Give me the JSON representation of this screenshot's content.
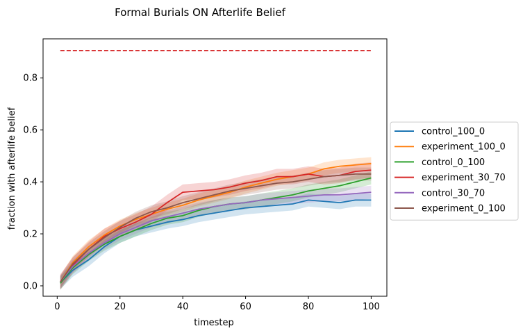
{
  "chart_data": {
    "type": "line",
    "title": "Formal Burials ON Afterlife Belief",
    "xlabel": "timestep",
    "ylabel": "fraction with afterlife belief",
    "xlim": [
      -4.5,
      105
    ],
    "ylim": [
      -0.04,
      0.95
    ],
    "xticks": [
      0,
      20,
      40,
      60,
      80,
      100
    ],
    "yticks": [
      0.0,
      0.2,
      0.4,
      0.6,
      0.8
    ],
    "grid": false,
    "legend_position": "outside-right",
    "reference_line": {
      "y": 0.905,
      "x": [
        1,
        100
      ],
      "style": "dashed",
      "color": "#d62728"
    },
    "series": [
      {
        "name": "control_100_0",
        "color": "#1f77b4",
        "x": [
          1,
          5,
          10,
          15,
          20,
          25,
          30,
          35,
          40,
          45,
          50,
          55,
          60,
          65,
          70,
          75,
          80,
          85,
          90,
          95,
          100
        ],
        "y": [
          0.012,
          0.06,
          0.1,
          0.15,
          0.19,
          0.215,
          0.23,
          0.245,
          0.255,
          0.27,
          0.28,
          0.29,
          0.3,
          0.305,
          0.31,
          0.315,
          0.33,
          0.325,
          0.32,
          0.33,
          0.33
        ],
        "band": 0.025
      },
      {
        "name": "experiment_100_0",
        "color": "#ff7f0e",
        "x": [
          1,
          5,
          10,
          15,
          20,
          25,
          30,
          35,
          40,
          45,
          50,
          55,
          60,
          65,
          70,
          75,
          80,
          85,
          90,
          95,
          100
        ],
        "y": [
          0.015,
          0.09,
          0.15,
          0.195,
          0.23,
          0.255,
          0.275,
          0.295,
          0.31,
          0.33,
          0.345,
          0.36,
          0.38,
          0.395,
          0.41,
          0.42,
          0.43,
          0.45,
          0.46,
          0.465,
          0.47
        ],
        "band": 0.025
      },
      {
        "name": "control_0_100",
        "color": "#2ca02c",
        "x": [
          1,
          5,
          10,
          15,
          20,
          25,
          30,
          35,
          40,
          45,
          50,
          55,
          60,
          65,
          70,
          75,
          80,
          85,
          90,
          95,
          100
        ],
        "y": [
          0.01,
          0.07,
          0.12,
          0.16,
          0.19,
          0.215,
          0.24,
          0.26,
          0.27,
          0.29,
          0.305,
          0.315,
          0.32,
          0.33,
          0.34,
          0.35,
          0.365,
          0.375,
          0.385,
          0.4,
          0.415
        ],
        "band": 0.025
      },
      {
        "name": "experiment_30_70",
        "color": "#d62728",
        "x": [
          1,
          5,
          10,
          15,
          20,
          25,
          30,
          35,
          40,
          45,
          50,
          55,
          60,
          65,
          70,
          75,
          80,
          85,
          90,
          95,
          100
        ],
        "y": [
          0.015,
          0.08,
          0.14,
          0.19,
          0.22,
          0.245,
          0.275,
          0.32,
          0.36,
          0.365,
          0.37,
          0.38,
          0.395,
          0.405,
          0.42,
          0.42,
          0.43,
          0.42,
          0.425,
          0.44,
          0.445
        ],
        "band": 0.03
      },
      {
        "name": "control_30_70",
        "color": "#9467bd",
        "x": [
          1,
          5,
          10,
          15,
          20,
          25,
          30,
          35,
          40,
          45,
          50,
          55,
          60,
          65,
          70,
          75,
          80,
          85,
          90,
          95,
          100
        ],
        "y": [
          0.015,
          0.075,
          0.125,
          0.165,
          0.2,
          0.225,
          0.25,
          0.265,
          0.28,
          0.295,
          0.305,
          0.315,
          0.32,
          0.33,
          0.335,
          0.34,
          0.345,
          0.35,
          0.35,
          0.355,
          0.36
        ],
        "band": 0.025
      },
      {
        "name": "experiment_0_100",
        "color": "#8c564b",
        "x": [
          1,
          5,
          10,
          15,
          20,
          25,
          30,
          35,
          40,
          45,
          50,
          55,
          60,
          65,
          70,
          75,
          80,
          85,
          90,
          95,
          100
        ],
        "y": [
          0.015,
          0.085,
          0.14,
          0.185,
          0.225,
          0.26,
          0.285,
          0.3,
          0.32,
          0.335,
          0.35,
          0.365,
          0.375,
          0.385,
          0.395,
          0.4,
          0.41,
          0.42,
          0.425,
          0.43,
          0.43
        ],
        "band": 0.025
      }
    ]
  }
}
